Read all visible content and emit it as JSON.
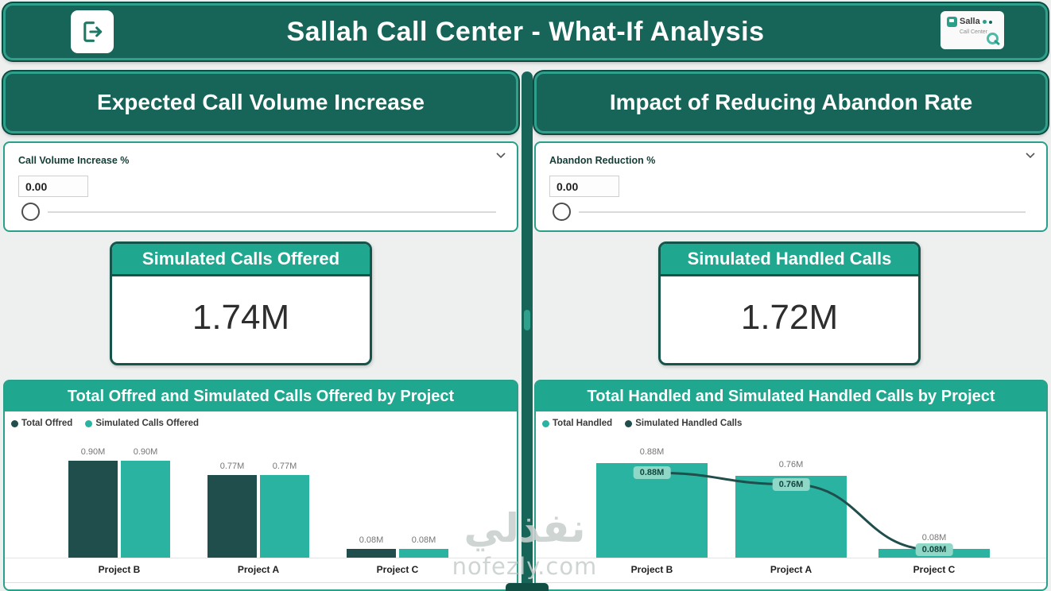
{
  "colors": {
    "header_bg": "#176458",
    "header_border": "#2FA08B",
    "panel_header_bg": "#1FA78F",
    "bar_dark": "#1F4E4C",
    "bar_teal": "#2BB3A1",
    "card_border": "#2AA08B",
    "page_bg": "#EDF0EE"
  },
  "header": {
    "title": "Sallah Call Center - What-If Analysis",
    "logo": {
      "line1": "Salla",
      "line2": "Call Center"
    }
  },
  "left": {
    "section_title": "Expected Call Volume Increase",
    "param": {
      "label": "Call Volume Increase %",
      "value": "0.00"
    },
    "kpi": {
      "title": "Simulated Calls Offered",
      "value": "1.74M"
    }
  },
  "right": {
    "section_title": "Impact of Reducing Abandon Rate",
    "param": {
      "label": "Abandon Reduction %",
      "value": "0.00"
    },
    "kpi": {
      "title": "Simulated Handled Calls",
      "value": "1.72M"
    }
  },
  "watermark": {
    "arabic": "نفذلي",
    "latin": "nofezly.com"
  },
  "chart_data": [
    {
      "type": "bar",
      "title": "Total Offred and Simulated Calls Offered by Project",
      "categories": [
        "Project B",
        "Project A",
        "Project C"
      ],
      "series": [
        {
          "name": "Total Offred",
          "kind": "bar",
          "color": "#1F4E4C",
          "values": [
            0.9,
            0.77,
            0.08
          ],
          "labels": [
            "0.90M",
            "0.77M",
            "0.08M"
          ]
        },
        {
          "name": "Simulated Calls Offered",
          "kind": "bar",
          "color": "#2BB3A1",
          "values": [
            0.9,
            0.77,
            0.08
          ],
          "labels": [
            "0.90M",
            "0.77M",
            "0.08M"
          ]
        }
      ],
      "ylim": [
        0,
        1.0
      ],
      "xlabel": "",
      "ylabel": "",
      "grid": false,
      "legend_position": "top-left",
      "units": "millions of calls"
    },
    {
      "type": "bar+line",
      "title": "Total Handled and Simulated Handled Calls by Project",
      "categories": [
        "Project B",
        "Project A",
        "Project C"
      ],
      "series": [
        {
          "name": "Total Handled",
          "kind": "bar",
          "color": "#2BB3A1",
          "values": [
            0.88,
            0.76,
            0.08
          ],
          "labels": [
            "0.88M",
            "0.76M",
            "0.08M"
          ]
        },
        {
          "name": "Simulated Handled Calls",
          "kind": "line",
          "color": "#1F4E4C",
          "values": [
            0.88,
            0.76,
            0.08
          ],
          "labels": [
            "0.88M",
            "0.76M",
            "0.08M"
          ],
          "label_style": "chip"
        }
      ],
      "ylim": [
        0,
        1.0
      ],
      "xlabel": "",
      "ylabel": "",
      "grid": false,
      "legend_position": "top-left",
      "units": "millions of calls"
    }
  ]
}
